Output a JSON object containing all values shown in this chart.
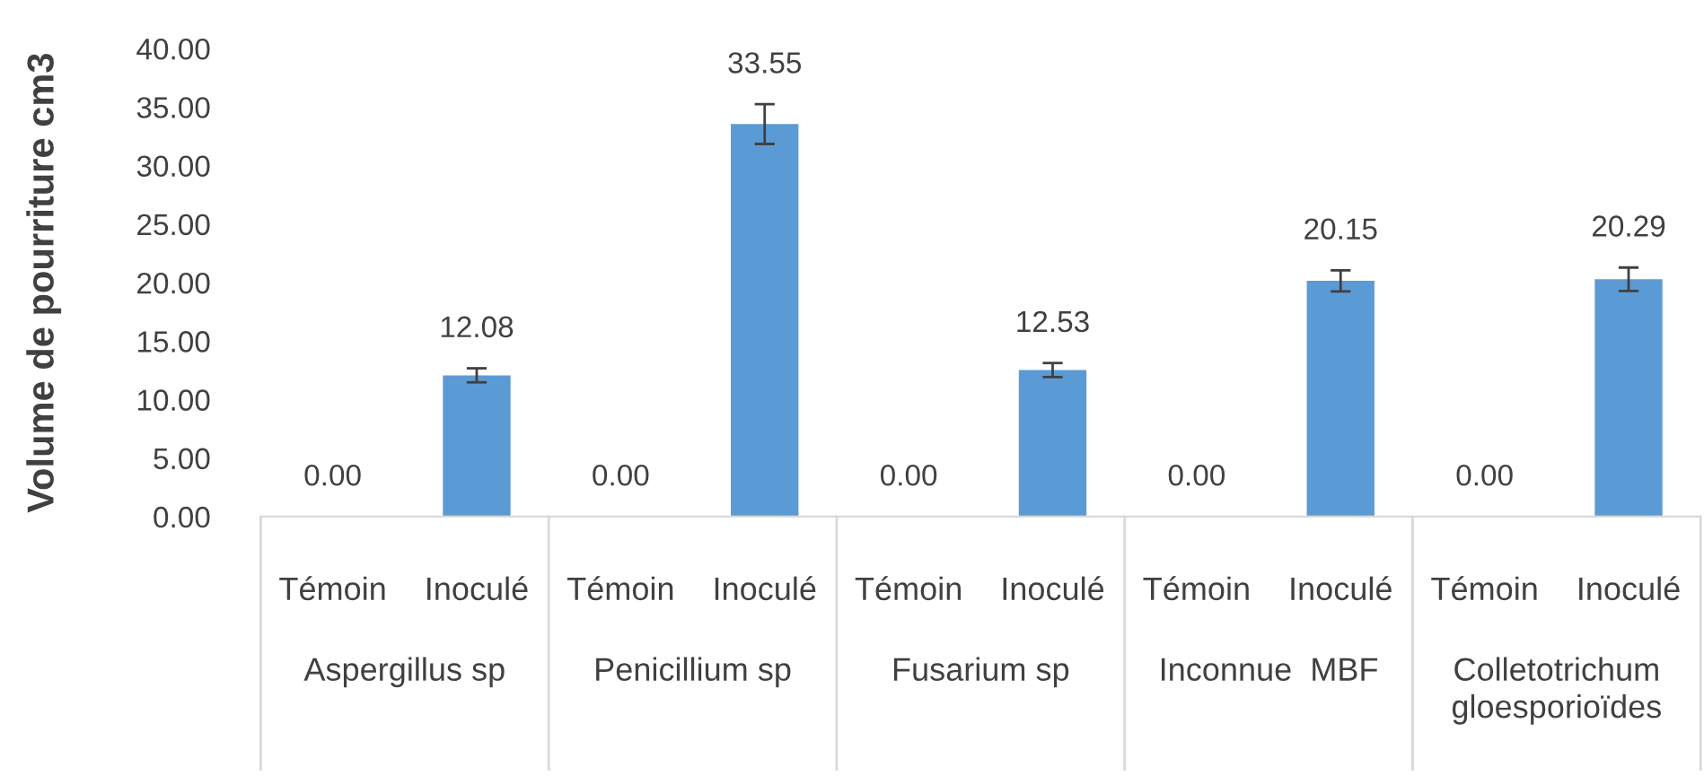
{
  "chart_data": {
    "type": "bar",
    "ylabel": "Volume de pourriture cm3",
    "categories": [
      "Témoin",
      "Inoculé",
      "Témoin",
      "Inoculé",
      "Témoin",
      "Inoculé",
      "Témoin",
      "Inoculé",
      "Témoin",
      "Inoculé"
    ],
    "values": [
      0,
      12.08,
      0,
      33.55,
      0,
      12.53,
      0,
      20.15,
      0,
      20.29
    ],
    "value_labels": [
      "0.00",
      "12.08",
      "0.00",
      "33.55",
      "0.00",
      "12.53",
      "0.00",
      "20.15",
      "0.00",
      "20.29"
    ],
    "errors": [
      null,
      0.6,
      null,
      1.7,
      null,
      0.6,
      null,
      0.9,
      null,
      1.0
    ],
    "color": "#5b9bd5",
    "annotations": [
      "Aspergillus sp",
      "Penicillium sp",
      "Fusarium sp",
      "Inconnue  MBF",
      "Colletotrichum\ngloesporioïdes"
    ],
    "ylim": [
      0,
      40
    ],
    "yticks": [
      {
        "value": 0,
        "label": "0.00"
      },
      {
        "value": 5,
        "label": "5.00"
      },
      {
        "value": 10,
        "label": "10.00"
      },
      {
        "value": 15,
        "label": "15.00"
      },
      {
        "value": 20,
        "label": "20.00"
      },
      {
        "value": 25,
        "label": "25.00"
      },
      {
        "value": 30,
        "label": "30.00"
      },
      {
        "value": 35,
        "label": "35.00"
      },
      {
        "value": 40,
        "label": "40.00"
      }
    ],
    "grid": false
  }
}
